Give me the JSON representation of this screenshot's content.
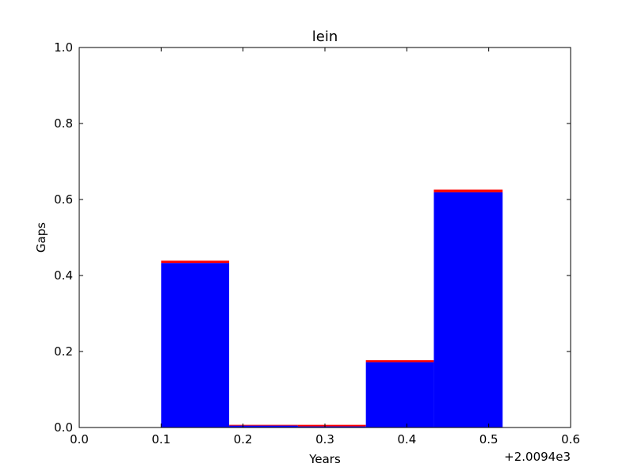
{
  "chart_data": {
    "type": "bar",
    "title": "lein",
    "xlabel": "Years",
    "ylabel": "Gaps",
    "x_offset_label": "+2.0094e3",
    "xlim": [
      0.0,
      0.6
    ],
    "ylim": [
      0.0,
      1.0
    ],
    "x_ticks": [
      "0.0",
      "0.1",
      "0.2",
      "0.3",
      "0.4",
      "0.5",
      "0.6"
    ],
    "y_ticks": [
      "0.0",
      "0.2",
      "0.4",
      "0.6",
      "0.8",
      "1.0"
    ],
    "grid": false,
    "stacked": true,
    "bins": [
      {
        "x0": 0.1,
        "x1": 0.183,
        "segments": [
          0.433,
          0.006
        ]
      },
      {
        "x0": 0.183,
        "x1": 0.267,
        "segments": [
          0.005,
          0.002
        ]
      },
      {
        "x0": 0.267,
        "x1": 0.35,
        "segments": [
          0.003,
          0.004
        ]
      },
      {
        "x0": 0.35,
        "x1": 0.433,
        "segments": [
          0.172,
          0.005
        ]
      },
      {
        "x0": 0.433,
        "x1": 0.517,
        "segments": [
          0.619,
          0.007
        ]
      }
    ],
    "series": [
      {
        "color": "#0000ff"
      },
      {
        "color": "#ff0000"
      }
    ]
  }
}
